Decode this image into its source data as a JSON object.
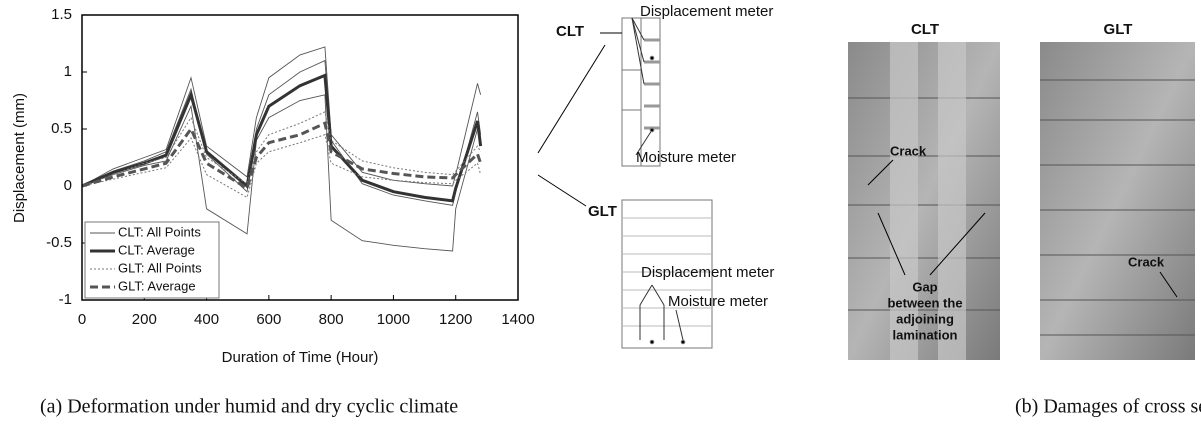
{
  "chart_data": {
    "type": "line",
    "x_label": "Duration of Time (Hour)",
    "y_label": "Displacement (mm)",
    "x": [
      0,
      100,
      200,
      270,
      350,
      400,
      530,
      560,
      600,
      700,
      780,
      800,
      900,
      1000,
      1100,
      1190,
      1200,
      1270,
      1280
    ],
    "xlim": [
      0,
      1400
    ],
    "xticks": [
      0,
      200,
      400,
      600,
      800,
      1000,
      1200,
      1400
    ],
    "ylim": [
      -1,
      1.5
    ],
    "yticks": [
      -1,
      -0.5,
      0,
      0.5,
      1,
      1.5
    ],
    "legend": "lower left",
    "series": [
      {
        "name": "CLT: All Points",
        "color": "#555555",
        "style": "thin",
        "values": [
          [
            0,
            0.15,
            0.25,
            0.32,
            0.95,
            0.35,
            0.08,
            0.6,
            0.95,
            1.15,
            1.22,
            0.45,
            0.12,
            0.05,
            0.02,
            0,
            0.1,
            0.9,
            0.8
          ],
          [
            0,
            0.1,
            0.18,
            0.22,
            0.7,
            -0.2,
            -0.42,
            0.4,
            0.6,
            0.75,
            0.8,
            -0.3,
            -0.48,
            -0.52,
            -0.55,
            -0.57,
            -0.2,
            0.5,
            0.4
          ],
          [
            0,
            0.13,
            0.22,
            0.3,
            0.85,
            0.28,
            -0.05,
            0.5,
            0.8,
            1.0,
            1.1,
            0.4,
            0.02,
            -0.08,
            -0.13,
            -0.17,
            -0.05,
            0.65,
            0.45
          ]
        ]
      },
      {
        "name": "CLT: Average",
        "color": "#333333",
        "style": "thick",
        "values": [
          0,
          0.12,
          0.2,
          0.27,
          0.8,
          0.3,
          0,
          0.45,
          0.7,
          0.88,
          0.97,
          0.35,
          0.05,
          -0.05,
          -0.1,
          -0.13,
          -0.02,
          0.57,
          0.35
        ]
      },
      {
        "name": "GLT: All Points",
        "color": "#777777",
        "style": "dotted",
        "values": [
          [
            0,
            0.1,
            0.2,
            0.25,
            0.6,
            0.25,
            0.02,
            0.3,
            0.45,
            0.55,
            0.65,
            0.4,
            0.22,
            0.16,
            0.12,
            0.1,
            0.13,
            0.35,
            0.3
          ],
          [
            0,
            0.06,
            0.12,
            0.16,
            0.42,
            0.1,
            -0.1,
            0.2,
            0.3,
            0.38,
            0.45,
            0.2,
            0.08,
            0.05,
            0.03,
            0.02,
            0.05,
            0.2,
            0.1
          ]
        ]
      },
      {
        "name": "GLT: Average",
        "color": "#555555",
        "style": "dashed",
        "values": [
          0,
          0.08,
          0.15,
          0.2,
          0.5,
          0.2,
          -0.02,
          0.25,
          0.38,
          0.45,
          0.55,
          0.3,
          0.15,
          0.11,
          0.08,
          0.07,
          0.1,
          0.28,
          0.2
        ]
      }
    ]
  },
  "diagram": {
    "clt": "CLT",
    "glt": "GLT",
    "clt_displacement": "Displacement meter",
    "clt_moisture": "Moisture meter",
    "glt_displacement": "Displacement meter",
    "glt_moisture": "Moisture meter"
  },
  "photos": {
    "clt_title": "CLT",
    "glt_title": "GLT",
    "clt_crack": "Crack",
    "gap": [
      "Gap",
      "between the",
      "adjoining",
      "lamination"
    ],
    "glt_crack": "Crack"
  },
  "captions": [
    "(a) Deformation under humid and dry cyclic climate",
    "(b) Damages of  cross section"
  ]
}
